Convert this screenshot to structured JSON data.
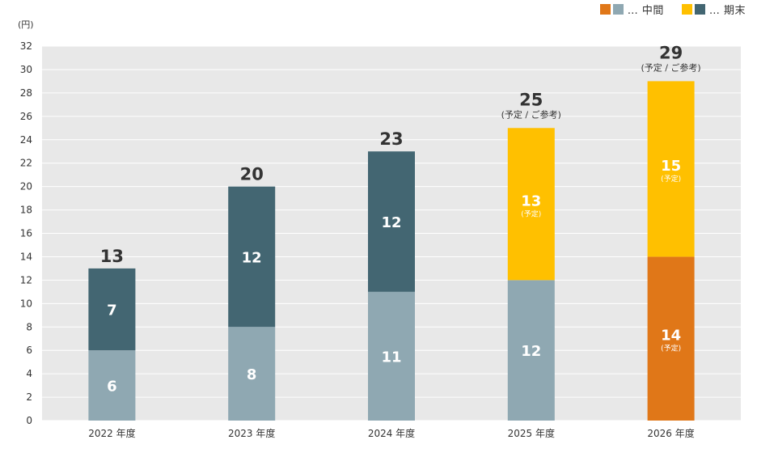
{
  "chart_data": {
    "type": "bar",
    "stacked": true,
    "unit_label": "(円)",
    "categories": [
      "2022 年度",
      "2023 年度",
      "2024 年度",
      "2025 年度",
      "2026 年度"
    ],
    "series": [
      {
        "name": "中間",
        "values": [
          6,
          8,
          11,
          12,
          14
        ],
        "colors": [
          "#8fa8b2",
          "#8fa8b2",
          "#8fa8b2",
          "#8fa8b2",
          "#e07718"
        ],
        "sublabels": [
          "",
          "",
          "",
          "",
          "(予定)"
        ]
      },
      {
        "name": "期末",
        "values": [
          7,
          12,
          12,
          13,
          15
        ],
        "colors": [
          "#436672",
          "#436672",
          "#436672",
          "#ffc000",
          "#ffc000"
        ],
        "sublabels": [
          "",
          "",
          "",
          "(予定)",
          "(予定)"
        ]
      }
    ],
    "totals": [
      13,
      20,
      23,
      25,
      29
    ],
    "total_notes": [
      "",
      "",
      "",
      "(予定 / ご参考)",
      "(予定 / ご参考)"
    ],
    "ylim": [
      0,
      32
    ],
    "yticks": [
      0,
      2,
      4,
      6,
      8,
      10,
      12,
      14,
      16,
      18,
      20,
      22,
      24,
      26,
      28,
      30,
      32
    ],
    "grid": true,
    "legend": {
      "position": "top-right",
      "items": [
        {
          "colors": [
            "#e07718",
            "#8fa8b2"
          ],
          "label": "… 中間"
        },
        {
          "colors": [
            "#ffc000",
            "#436672"
          ],
          "label": "… 期末"
        }
      ]
    },
    "colors": {
      "plot_bg": "#e8e8e8",
      "grid": "#ffffff",
      "axis_text": "#333333"
    }
  }
}
